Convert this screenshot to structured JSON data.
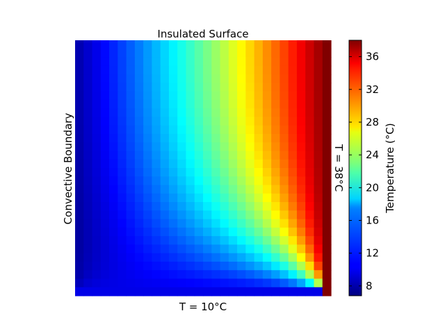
{
  "chart_data": {
    "type": "heatmap",
    "title": "Insulated Surface",
    "grid": false,
    "legend": "none",
    "grid_size": [
      30,
      30
    ],
    "boundary_labels": {
      "top": "Insulated Surface",
      "bottom": "T = 10°C",
      "left": "Convective Boundary",
      "right": "T = 38°C"
    },
    "colorbar": {
      "label": "Temperature (°C)",
      "min": 6.8,
      "max": 38,
      "ticks": [
        8,
        12,
        16,
        20,
        24,
        28,
        32,
        36
      ],
      "colormap": "jet",
      "placement": "right"
    }
  }
}
